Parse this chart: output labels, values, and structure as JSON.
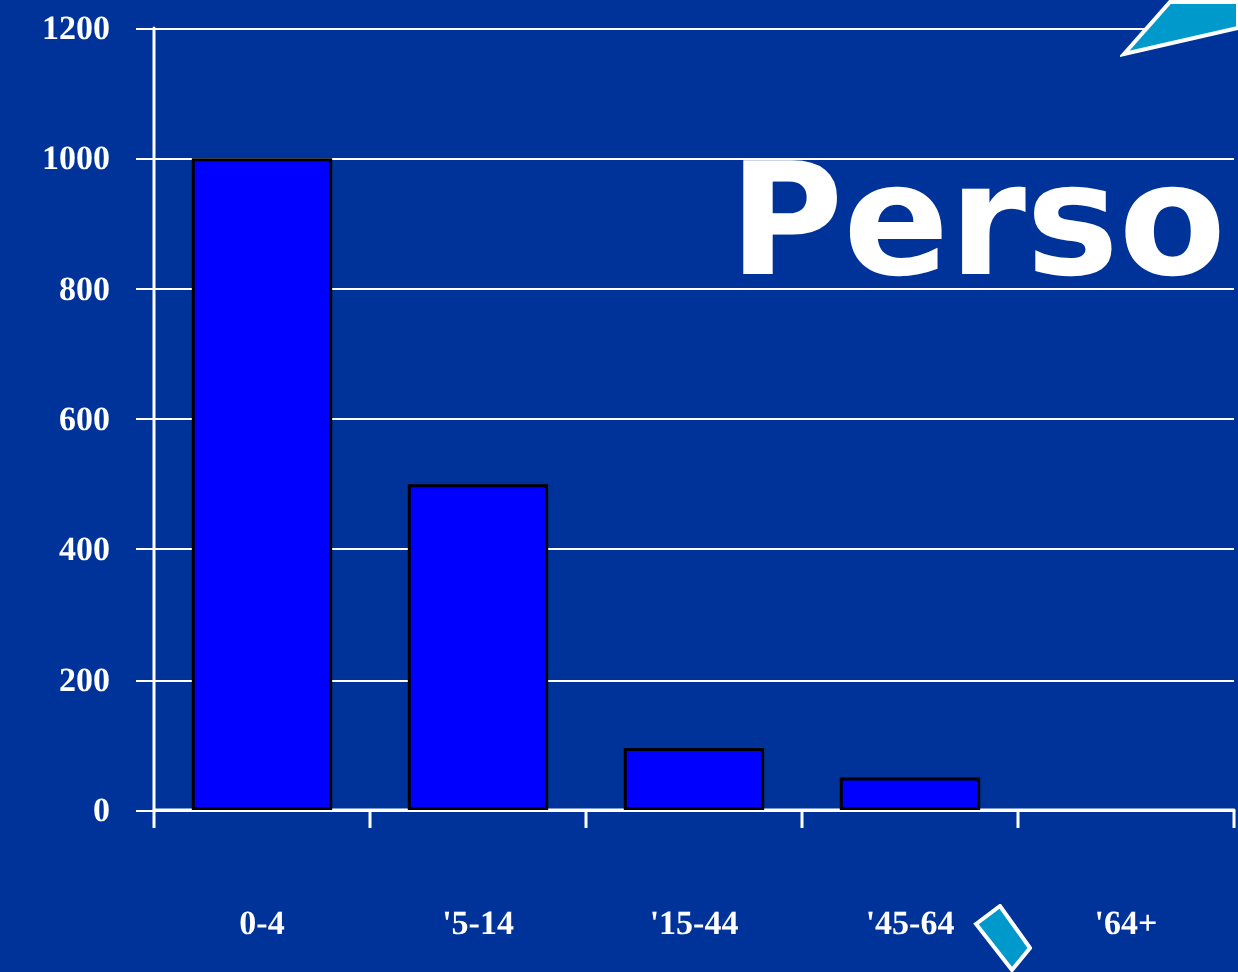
{
  "chart_data": {
    "type": "bar",
    "categories": [
      "0-4",
      "'5-14",
      "'15-44",
      "'45-64",
      "'64+"
    ],
    "values": [
      1000,
      500,
      95,
      50,
      null
    ],
    "color": "#0000ff",
    "ylim": [
      0,
      1200
    ],
    "yticks": [
      0,
      200,
      400,
      600,
      800,
      1000,
      1200
    ],
    "grid": "y",
    "annotations": [
      "Perso"
    ]
  }
}
